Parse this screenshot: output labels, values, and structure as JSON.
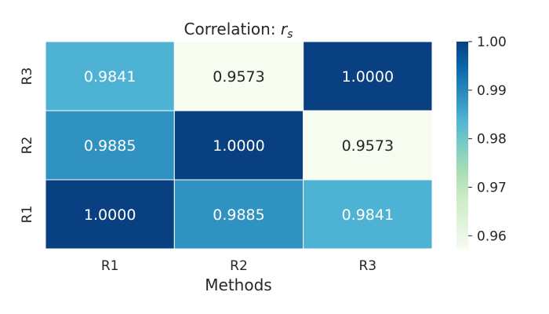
{
  "chart_data": {
    "type": "heatmap",
    "title_prefix": "Correlation: ",
    "title_symbol": "r",
    "title_subscript": "s",
    "xlabel": "Methods",
    "ylabel": "",
    "x_categories": [
      "R1",
      "R2",
      "R3"
    ],
    "y_categories": [
      "R3",
      "R2",
      "R1"
    ],
    "values": [
      [
        "0.9841",
        "0.9573",
        "1.0000"
      ],
      [
        "0.9885",
        "1.0000",
        "0.9573"
      ],
      [
        "1.0000",
        "0.9885",
        "0.9841"
      ]
    ],
    "colorbar": {
      "min": 0.9573,
      "max": 1.0,
      "ticks": [
        "0.96",
        "0.97",
        "0.98",
        "0.99",
        "1.00"
      ],
      "colormap": "GnBu"
    }
  }
}
